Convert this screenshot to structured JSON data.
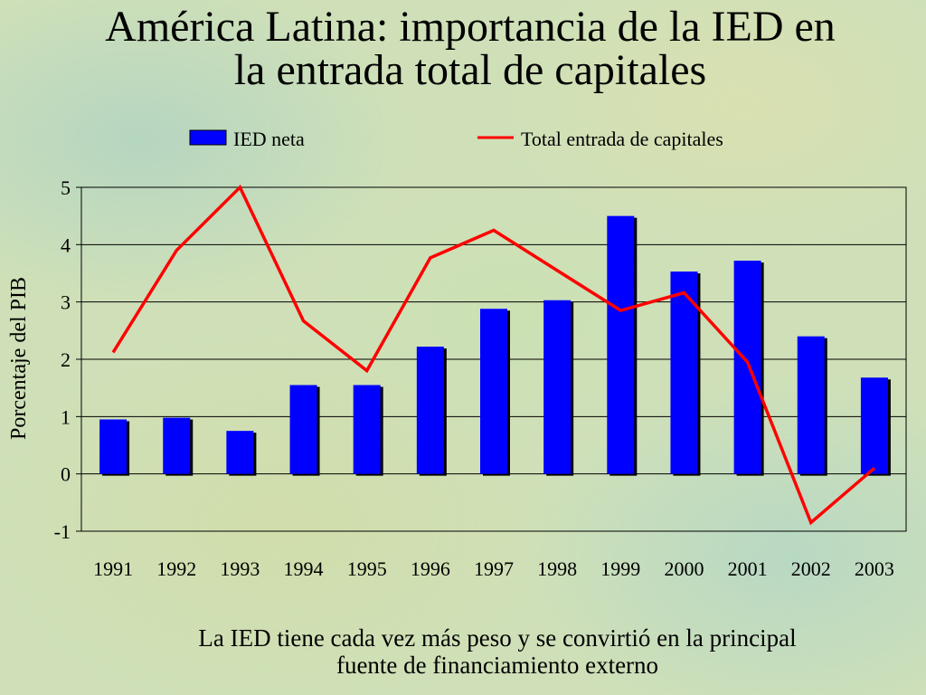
{
  "slide": {
    "title_line1": "América Latina: importancia de la IED en",
    "title_line2": "la entrada total de capitales",
    "caption_line1": "La IED tiene cada vez más peso y se convirtió en la principal",
    "caption_line2": "fuente de financiamiento externo"
  },
  "colors": {
    "bar": "#0000ff",
    "line": "#ff0000",
    "grid": "#000000",
    "bar_shadow": "#000000"
  },
  "chart_data": {
    "type": "bar",
    "title": "",
    "xlabel": "",
    "ylabel": "Porcentaje del PIB",
    "ylim": [
      -1,
      5
    ],
    "yticks": [
      -1,
      0,
      1,
      2,
      3,
      4,
      5
    ],
    "grid": true,
    "legend": "top",
    "categories": [
      "1991",
      "1992",
      "1993",
      "1994",
      "1995",
      "1996",
      "1997",
      "1998",
      "1999",
      "2000",
      "2001",
      "2002",
      "2003"
    ],
    "series": [
      {
        "name": "IED neta",
        "type": "bar",
        "values": [
          0.95,
          0.98,
          0.75,
          1.55,
          1.55,
          2.22,
          2.88,
          3.03,
          4.5,
          3.53,
          3.72,
          2.4,
          1.68
        ]
      },
      {
        "name": "Total entrada de capitales",
        "type": "line",
        "values": [
          2.12,
          3.9,
          5.0,
          2.67,
          1.8,
          3.77,
          4.25,
          3.55,
          2.85,
          3.16,
          1.95,
          -0.85,
          0.1
        ]
      }
    ]
  }
}
